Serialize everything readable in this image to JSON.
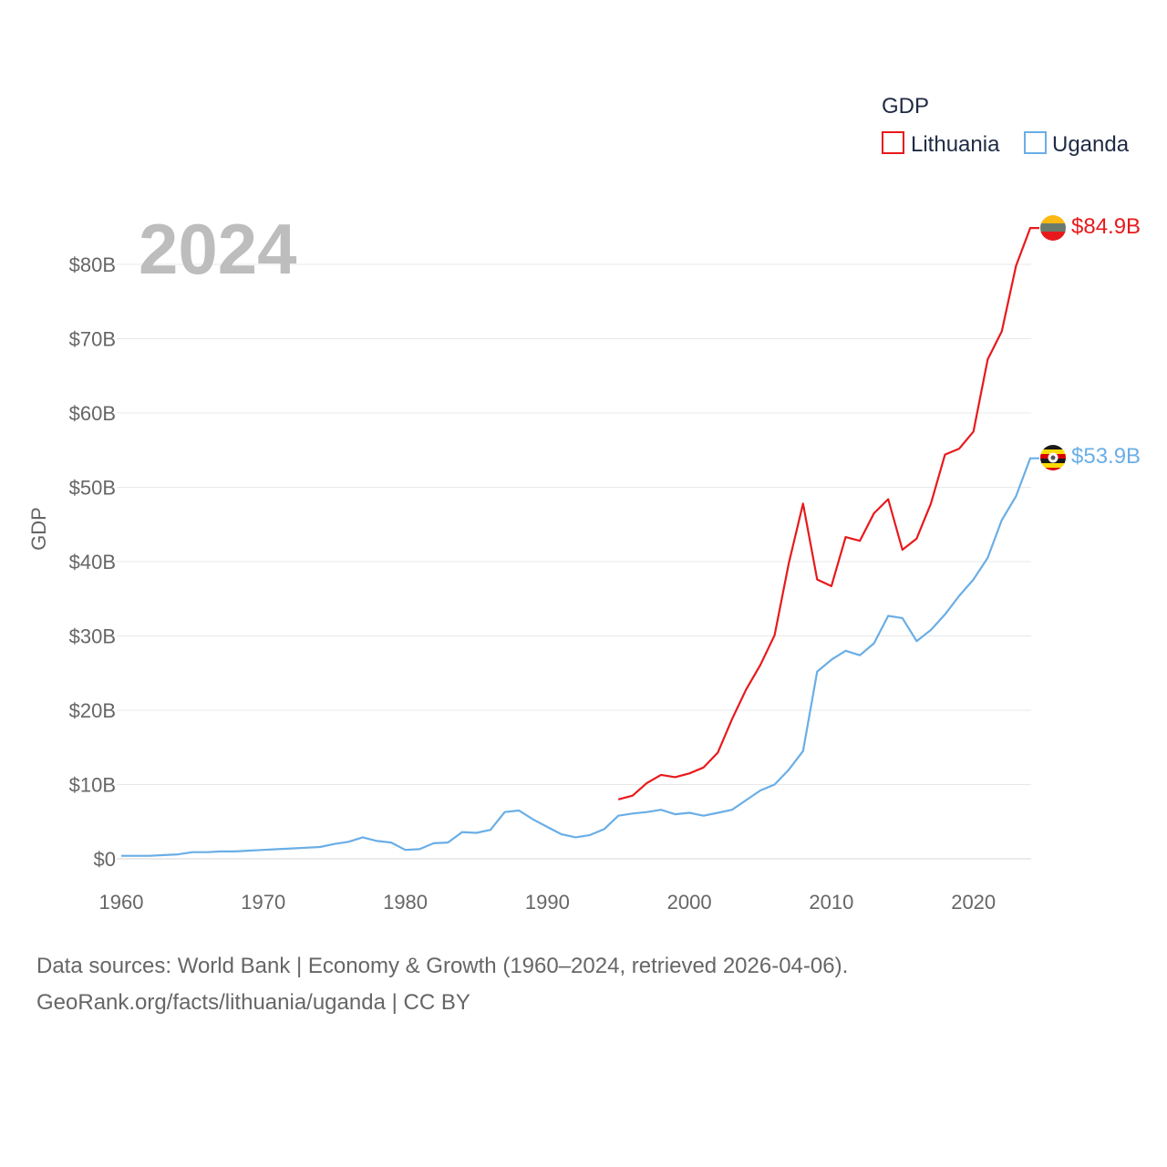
{
  "chart_data": {
    "type": "line",
    "title": "",
    "year_label": "2024",
    "legend_title": "GDP",
    "ylabel": "GDP",
    "xlabel": "",
    "xlim": [
      1960,
      2024
    ],
    "ylim": [
      0,
      88
    ],
    "x_ticks": [
      1960,
      1970,
      1980,
      1990,
      2000,
      2010,
      2020
    ],
    "y_ticks": [
      {
        "value": 0,
        "label": "$0"
      },
      {
        "value": 10,
        "label": "$10B"
      },
      {
        "value": 20,
        "label": "$20B"
      },
      {
        "value": 30,
        "label": "$30B"
      },
      {
        "value": 40,
        "label": "$40B"
      },
      {
        "value": 50,
        "label": "$50B"
      },
      {
        "value": 60,
        "label": "$60B"
      },
      {
        "value": 70,
        "label": "$70B"
      },
      {
        "value": 80,
        "label": "$80B"
      }
    ],
    "units": "billion USD",
    "series": [
      {
        "name": "Lithuania",
        "color": "#e8191c",
        "end_label": "$84.9B",
        "flag": "lithuania-flag-icon",
        "points": [
          [
            1995,
            8.0
          ],
          [
            1996,
            8.5
          ],
          [
            1997,
            10.2
          ],
          [
            1998,
            11.3
          ],
          [
            1999,
            11.0
          ],
          [
            2000,
            11.5
          ],
          [
            2001,
            12.3
          ],
          [
            2002,
            14.3
          ],
          [
            2003,
            18.8
          ],
          [
            2004,
            22.8
          ],
          [
            2005,
            26.1
          ],
          [
            2006,
            30.1
          ],
          [
            2007,
            39.8
          ],
          [
            2008,
            47.8
          ],
          [
            2009,
            37.6
          ],
          [
            2010,
            36.7
          ],
          [
            2011,
            43.3
          ],
          [
            2012,
            42.8
          ],
          [
            2013,
            46.5
          ],
          [
            2014,
            48.4
          ],
          [
            2015,
            41.6
          ],
          [
            2016,
            43.1
          ],
          [
            2017,
            47.8
          ],
          [
            2018,
            54.4
          ],
          [
            2019,
            55.2
          ],
          [
            2020,
            57.5
          ],
          [
            2021,
            67.2
          ],
          [
            2022,
            71.0
          ],
          [
            2023,
            79.8
          ],
          [
            2024,
            84.9
          ]
        ]
      },
      {
        "name": "Uganda",
        "color": "#6aaee6",
        "end_label": "$53.9B",
        "flag": "uganda-flag-icon",
        "points": [
          [
            1960,
            0.4
          ],
          [
            1961,
            0.4
          ],
          [
            1962,
            0.4
          ],
          [
            1963,
            0.5
          ],
          [
            1964,
            0.6
          ],
          [
            1965,
            0.9
          ],
          [
            1966,
            0.9
          ],
          [
            1967,
            1.0
          ],
          [
            1968,
            1.0
          ],
          [
            1969,
            1.1
          ],
          [
            1970,
            1.2
          ],
          [
            1971,
            1.3
          ],
          [
            1972,
            1.4
          ],
          [
            1973,
            1.5
          ],
          [
            1974,
            1.6
          ],
          [
            1975,
            2.0
          ],
          [
            1976,
            2.3
          ],
          [
            1977,
            2.9
          ],
          [
            1978,
            2.4
          ],
          [
            1979,
            2.2
          ],
          [
            1980,
            1.2
          ],
          [
            1981,
            1.3
          ],
          [
            1982,
            2.1
          ],
          [
            1983,
            2.2
          ],
          [
            1984,
            3.6
          ],
          [
            1985,
            3.5
          ],
          [
            1986,
            3.9
          ],
          [
            1987,
            6.3
          ],
          [
            1988,
            6.5
          ],
          [
            1989,
            5.3
          ],
          [
            1990,
            4.3
          ],
          [
            1991,
            3.3
          ],
          [
            1992,
            2.9
          ],
          [
            1993,
            3.2
          ],
          [
            1994,
            4.0
          ],
          [
            1995,
            5.8
          ],
          [
            1996,
            6.1
          ],
          [
            1997,
            6.3
          ],
          [
            1998,
            6.6
          ],
          [
            1999,
            6.0
          ],
          [
            2000,
            6.2
          ],
          [
            2001,
            5.8
          ],
          [
            2002,
            6.2
          ],
          [
            2003,
            6.6
          ],
          [
            2004,
            7.9
          ],
          [
            2005,
            9.2
          ],
          [
            2006,
            10.0
          ],
          [
            2007,
            12.0
          ],
          [
            2008,
            14.5
          ],
          [
            2009,
            25.2
          ],
          [
            2010,
            26.8
          ],
          [
            2011,
            28.0
          ],
          [
            2012,
            27.4
          ],
          [
            2013,
            29.0
          ],
          [
            2014,
            32.7
          ],
          [
            2015,
            32.4
          ],
          [
            2016,
            29.3
          ],
          [
            2017,
            30.8
          ],
          [
            2018,
            32.9
          ],
          [
            2019,
            35.4
          ],
          [
            2020,
            37.6
          ],
          [
            2021,
            40.5
          ],
          [
            2022,
            45.6
          ],
          [
            2023,
            48.8
          ],
          [
            2024,
            53.9
          ]
        ]
      }
    ]
  },
  "source": {
    "line1": "Data sources: World Bank | Economy & Growth (1960–2024, retrieved 2026-04-06).",
    "line2": "GeoRank.org/facts/lithuania/uganda | CC BY"
  }
}
